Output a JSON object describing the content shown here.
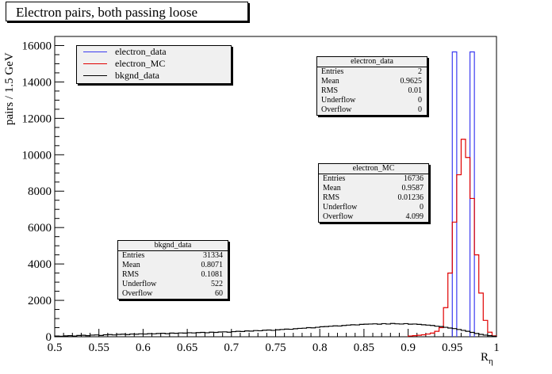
{
  "chart_data": {
    "type": "histogram",
    "title": "Electron pairs, both passing loose",
    "xlabel": "R",
    "xlabel_subscript": "η",
    "ylabel": "pairs / 1.5 GeV",
    "xlim": [
      0.5,
      1.0
    ],
    "ylim": [
      0,
      16500
    ],
    "xticks": [
      "0.5",
      "0.55",
      "0.6",
      "0.65",
      "0.7",
      "0.75",
      "0.8",
      "0.85",
      "0.9",
      "0.95",
      "1"
    ],
    "yticks": [
      "0",
      "2000",
      "4000",
      "6000",
      "8000",
      "10000",
      "12000",
      "14000",
      "16000"
    ],
    "bin_width": 0.005,
    "legend": [
      {
        "name": "electron_data",
        "color": "#3c3cf0"
      },
      {
        "name": "electron_MC",
        "color": "#e00000"
      },
      {
        "name": "bkgnd_data",
        "color": "#000000"
      }
    ],
    "series": [
      {
        "name": "electron_data",
        "color": "#3c3cf0",
        "bins": [
          [
            0.95,
            0.955,
            15650
          ],
          [
            0.97,
            0.975,
            15650
          ]
        ]
      },
      {
        "name": "electron_MC",
        "color": "#e00000",
        "bins": [
          [
            0.9,
            0.905,
            40
          ],
          [
            0.905,
            0.91,
            60
          ],
          [
            0.91,
            0.915,
            80
          ],
          [
            0.915,
            0.92,
            110
          ],
          [
            0.92,
            0.925,
            150
          ],
          [
            0.925,
            0.93,
            200
          ],
          [
            0.93,
            0.935,
            300
          ],
          [
            0.935,
            0.94,
            500
          ],
          [
            0.94,
            0.945,
            1600
          ],
          [
            0.945,
            0.95,
            3500
          ],
          [
            0.95,
            0.955,
            6300
          ],
          [
            0.955,
            0.96,
            8900
          ],
          [
            0.96,
            0.965,
            10850
          ],
          [
            0.965,
            0.97,
            9850
          ],
          [
            0.97,
            0.975,
            7600
          ],
          [
            0.975,
            0.98,
            4500
          ],
          [
            0.98,
            0.985,
            2400
          ],
          [
            0.985,
            0.99,
            900
          ],
          [
            0.99,
            0.995,
            250
          ],
          [
            0.995,
            1.0,
            50
          ]
        ]
      },
      {
        "name": "bkgnd_data",
        "color": "#000000",
        "values": [
          40,
          30,
          50,
          60,
          40,
          70,
          80,
          60,
          90,
          100,
          70,
          110,
          120,
          100,
          130,
          140,
          120,
          150,
          140,
          160,
          150,
          170,
          160,
          180,
          190,
          170,
          200,
          190,
          210,
          200,
          220,
          210,
          230,
          240,
          220,
          250,
          240,
          260,
          270,
          250,
          280,
          300,
          290,
          320,
          310,
          340,
          330,
          360,
          370,
          350,
          380,
          400,
          420,
          410,
          440,
          460,
          470,
          500,
          490,
          520,
          550,
          560,
          580,
          600,
          590,
          620,
          640,
          660,
          650,
          680,
          690,
          700,
          710,
          690,
          720,
          700,
          730,
          710,
          700,
          720,
          690,
          700,
          680,
          660,
          640,
          620,
          580,
          560,
          520,
          480,
          450,
          400,
          350,
          300,
          240,
          180,
          130,
          90,
          60,
          30
        ]
      }
    ],
    "stats_boxes": [
      {
        "name": "electron_data",
        "rows": [
          [
            "Entries",
            "2"
          ],
          [
            "Mean",
            "0.9625"
          ],
          [
            "RMS",
            "0.01"
          ],
          [
            "Underflow",
            "0"
          ],
          [
            "Overflow",
            "0"
          ]
        ]
      },
      {
        "name": "electron_MC",
        "rows": [
          [
            "Entries",
            "16736"
          ],
          [
            "Mean",
            "0.9587"
          ],
          [
            "RMS",
            "0.01236"
          ],
          [
            "Underflow",
            "0"
          ],
          [
            "Overflow",
            "4.099"
          ]
        ]
      },
      {
        "name": "bkgnd_data",
        "rows": [
          [
            "Entries",
            "31334"
          ],
          [
            "Mean",
            "0.8071"
          ],
          [
            "RMS",
            "0.1081"
          ],
          [
            "Underflow",
            "522"
          ],
          [
            "Overflow",
            "60"
          ]
        ]
      }
    ]
  }
}
